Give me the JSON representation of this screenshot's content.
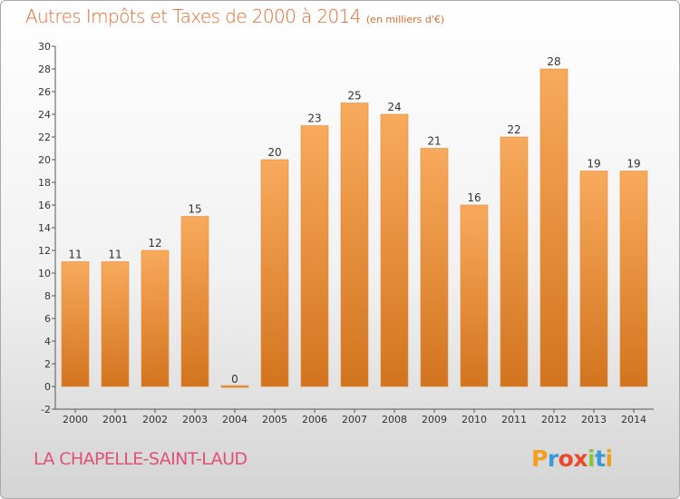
{
  "title": "Autres Impôts et Taxes de 2000 à 2014",
  "subtitle": "(en milliers d'€)",
  "location": "LA CHAPELLE-SAINT-LAUD",
  "logo": {
    "text": "Proxiti",
    "colors": [
      "#f0a020",
      "#3a9ad9",
      "#e84a2a",
      "#e84a2a",
      "#8ac43a",
      "#3a9ad9",
      "#f0a020"
    ]
  },
  "colors": {
    "bar_top": "#f8aa5c",
    "bar_bottom": "#d2741e",
    "title": "#e06a30",
    "location": "#e0507a"
  },
  "chart_data": {
    "type": "bar",
    "title": "Autres Impôts et Taxes de 2000 à 2014",
    "subtitle": "(en milliers d'€)",
    "xlabel": "",
    "ylabel": "",
    "ylim": [
      -2,
      30
    ],
    "yticks": [
      -2,
      0,
      2,
      4,
      6,
      8,
      10,
      12,
      14,
      16,
      18,
      20,
      22,
      24,
      26,
      28,
      30
    ],
    "grid": false,
    "categories": [
      "2000",
      "2001",
      "2002",
      "2003",
      "2004",
      "2005",
      "2006",
      "2007",
      "2008",
      "2009",
      "2010",
      "2011",
      "2012",
      "2013",
      "2014"
    ],
    "values": [
      11,
      11,
      12,
      15,
      0,
      20,
      23,
      25,
      24,
      21,
      16,
      22,
      28,
      19,
      19
    ]
  }
}
